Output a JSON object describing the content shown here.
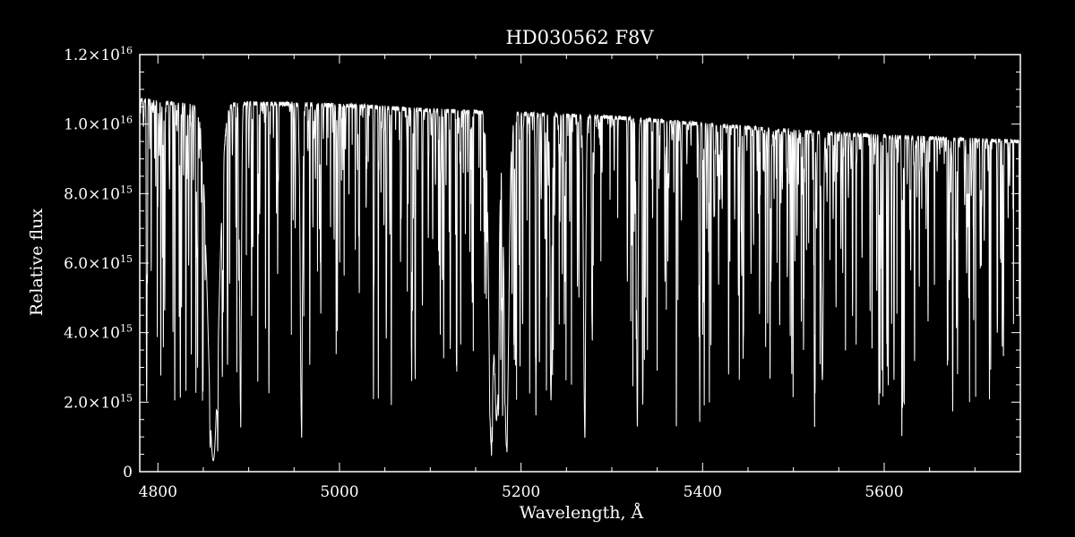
{
  "chart_data": {
    "type": "line",
    "title": "HD030562  F8V",
    "xlabel": "Wavelength, Å",
    "ylabel": "Relative flux",
    "xlim": [
      4780,
      5750
    ],
    "ylim": [
      0,
      1.2e+16
    ],
    "x_ticks": [
      {
        "value": 4800,
        "label": "4800"
      },
      {
        "value": 5000,
        "label": "5000"
      },
      {
        "value": 5200,
        "label": "5200"
      },
      {
        "value": 5400,
        "label": "5400"
      },
      {
        "value": 5600,
        "label": "5600"
      }
    ],
    "y_ticks": [
      {
        "value": 0,
        "mantissa": "0",
        "exponent": ""
      },
      {
        "value": 2000000000000000.0,
        "mantissa": "2.0×10",
        "exponent": "15"
      },
      {
        "value": 4000000000000000.0,
        "mantissa": "4.0×10",
        "exponent": "15"
      },
      {
        "value": 6000000000000000.0,
        "mantissa": "6.0×10",
        "exponent": "15"
      },
      {
        "value": 8000000000000000.0,
        "mantissa": "8.0×10",
        "exponent": "15"
      },
      {
        "value": 1e+16,
        "mantissa": "1.0×10",
        "exponent": "16"
      },
      {
        "value": 1.2e+16,
        "mantissa": "1.2×10",
        "exponent": "16"
      }
    ],
    "grid": false,
    "continuum": [
      [
        4780,
        1.07e+16
      ],
      [
        4850,
        1.05e+16
      ],
      [
        4900,
        1.06e+16
      ],
      [
        5000,
        1.055e+16
      ],
      [
        5100,
        1.04e+16
      ],
      [
        5200,
        1.03e+16
      ],
      [
        5300,
        1.02e+16
      ],
      [
        5400,
        1e+16
      ],
      [
        5500,
        9800000000000000.0
      ],
      [
        5600,
        9650000000000000.0
      ],
      [
        5700,
        9550000000000000.0
      ],
      [
        5750,
        9500000000000000.0
      ]
    ],
    "strong_lines": [
      {
        "x": 4861,
        "depth": 0.97,
        "width": 6
      },
      {
        "x": 5167,
        "depth": 0.92,
        "width": 2.5
      },
      {
        "x": 5173,
        "depth": 0.85,
        "width": 2.5
      },
      {
        "x": 5184,
        "depth": 0.93,
        "width": 2.5
      },
      {
        "x": 4958,
        "depth": 0.85,
        "width": 1.2
      },
      {
        "x": 5270,
        "depth": 0.82,
        "width": 1.2
      },
      {
        "x": 5328,
        "depth": 0.75,
        "width": 1.0
      },
      {
        "x": 5532,
        "depth": 0.72,
        "width": 1.0
      },
      {
        "x": 4891,
        "depth": 0.8,
        "width": 1.0
      },
      {
        "x": 5233,
        "depth": 0.8,
        "width": 1.0
      }
    ],
    "series": [
      {
        "values": []
      }
    ]
  },
  "colors": {
    "background": "#000000",
    "foreground": "#ffffff"
  }
}
